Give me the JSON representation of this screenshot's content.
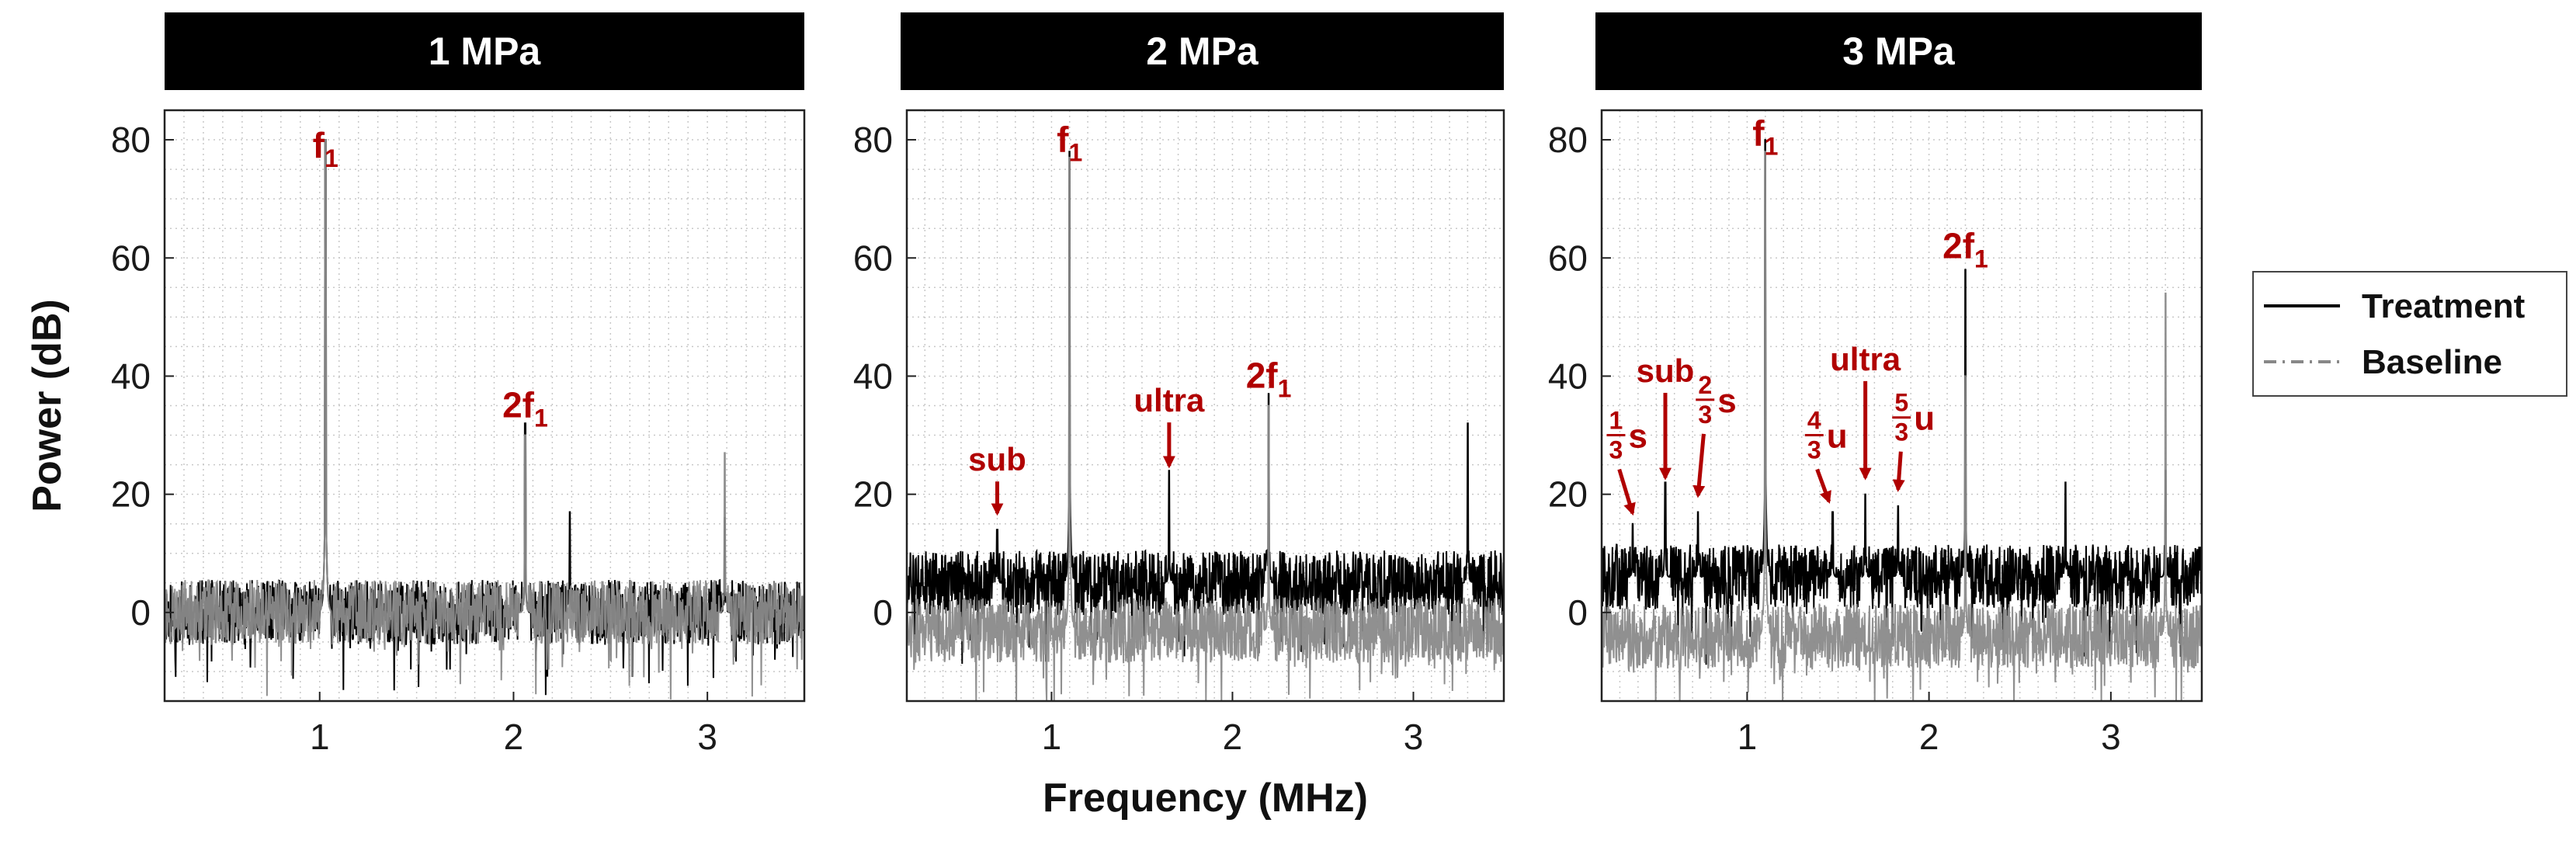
{
  "chart_data": [
    {
      "type": "line",
      "title": "1 MPa",
      "xlim": [
        0.2,
        3.5
      ],
      "ylim": [
        -15,
        85
      ],
      "xticks": [
        1,
        2,
        3
      ],
      "yticks": [
        0,
        20,
        40,
        60,
        80
      ],
      "ylabel": "Power (dB)",
      "xlabel": "",
      "grid": true,
      "series": [
        {
          "name": "Treatment",
          "noise_floor": 0,
          "peaks": [
            {
              "x": 1.03,
              "y": 80
            },
            {
              "x": 2.06,
              "y": 32
            },
            {
              "x": 2.29,
              "y": 17
            },
            {
              "x": 3.09,
              "y": 16
            }
          ]
        },
        {
          "name": "Baseline",
          "noise_floor": 0,
          "peaks": [
            {
              "x": 1.03,
              "y": 80
            },
            {
              "x": 2.06,
              "y": 30
            },
            {
              "x": 3.09,
              "y": 27
            }
          ]
        }
      ],
      "annotations": [
        {
          "base": "f",
          "sub": "1",
          "x": 1.03,
          "y": 77
        },
        {
          "base": "2f",
          "sub": "1",
          "x": 2.06,
          "y": 33
        }
      ]
    },
    {
      "type": "line",
      "title": "2 MPa",
      "xlim": [
        0.2,
        3.5
      ],
      "ylim": [
        -15,
        85
      ],
      "xticks": [
        1,
        2,
        3
      ],
      "yticks": [
        0,
        20,
        40,
        60,
        80
      ],
      "xlabel": "Frequency (MHz)",
      "ylabel": "",
      "grid": true,
      "series": [
        {
          "name": "Treatment",
          "noise_floor": 5,
          "peaks": [
            {
              "x": 1.1,
              "y": 78
            },
            {
              "x": 0.7,
              "y": 14
            },
            {
              "x": 1.65,
              "y": 24
            },
            {
              "x": 2.2,
              "y": 37
            },
            {
              "x": 3.3,
              "y": 32
            }
          ]
        },
        {
          "name": "Baseline",
          "noise_floor": -3,
          "peaks": [
            {
              "x": 1.1,
              "y": 77
            },
            {
              "x": 2.2,
              "y": 35
            }
          ]
        }
      ],
      "annotations": [
        {
          "base": "f",
          "sub": "1",
          "x": 1.1,
          "y": 78
        },
        {
          "base": "2f",
          "sub": "1",
          "x": 2.2,
          "y": 38
        },
        {
          "base": "sub",
          "arrow_to": [
            0.7,
            16
          ],
          "x": 0.7,
          "y": 24
        },
        {
          "base": "ultra",
          "arrow_to": [
            1.65,
            24
          ],
          "x": 1.65,
          "y": 34
        }
      ]
    },
    {
      "type": "line",
      "title": "3 MPa",
      "xlim": [
        0.2,
        3.5
      ],
      "ylim": [
        -15,
        85
      ],
      "xticks": [
        1,
        2,
        3
      ],
      "yticks": [
        0,
        20,
        40,
        60,
        80
      ],
      "xlabel": "",
      "ylabel": "",
      "grid": true,
      "series": [
        {
          "name": "Treatment",
          "noise_floor": 6,
          "peaks": [
            {
              "x": 1.1,
              "y": 80
            },
            {
              "x": 0.37,
              "y": 15
            },
            {
              "x": 0.55,
              "y": 22
            },
            {
              "x": 0.73,
              "y": 17
            },
            {
              "x": 1.47,
              "y": 17
            },
            {
              "x": 1.65,
              "y": 20
            },
            {
              "x": 1.83,
              "y": 18
            },
            {
              "x": 2.2,
              "y": 58
            },
            {
              "x": 2.75,
              "y": 22
            },
            {
              "x": 3.3,
              "y": 24
            }
          ]
        },
        {
          "name": "Baseline",
          "noise_floor": -4,
          "peaks": [
            {
              "x": 1.1,
              "y": 78
            },
            {
              "x": 2.2,
              "y": 40
            },
            {
              "x": 3.3,
              "y": 54
            }
          ]
        }
      ],
      "annotations": [
        {
          "base": "f",
          "sub": "1",
          "x": 1.1,
          "y": 79
        },
        {
          "base": "2f",
          "sub": "1",
          "x": 2.2,
          "y": 60
        },
        {
          "base": "sub",
          "arrow_to": [
            0.55,
            22
          ],
          "x": 0.55,
          "y": 39
        },
        {
          "base": "ultra",
          "arrow_to": [
            1.65,
            22
          ],
          "x": 1.65,
          "y": 41
        },
        {
          "frac": [
            "1",
            "3"
          ],
          "tail": "s",
          "arrow_to": [
            0.37,
            16
          ],
          "x": 0.33,
          "y": 30
        },
        {
          "frac": [
            "2",
            "3"
          ],
          "tail": "s",
          "arrow_to": [
            0.73,
            19
          ],
          "x": 0.82,
          "y": 36
        },
        {
          "frac": [
            "4",
            "3"
          ],
          "tail": "u",
          "arrow_to": [
            1.45,
            18
          ],
          "x": 1.42,
          "y": 30
        },
        {
          "frac": [
            "5",
            "3"
          ],
          "tail": "u",
          "arrow_to": [
            1.83,
            20
          ],
          "x": 1.9,
          "y": 33
        }
      ]
    }
  ],
  "legend": [
    {
      "label": "Treatment",
      "style": "solid",
      "color": "#000000"
    },
    {
      "label": "Baseline",
      "style": "dashdot",
      "color": "#888888"
    }
  ],
  "colors": {
    "treatment": "#000000",
    "baseline": "#8a8a8a",
    "annotation": "#b00000",
    "header": "#000000"
  }
}
